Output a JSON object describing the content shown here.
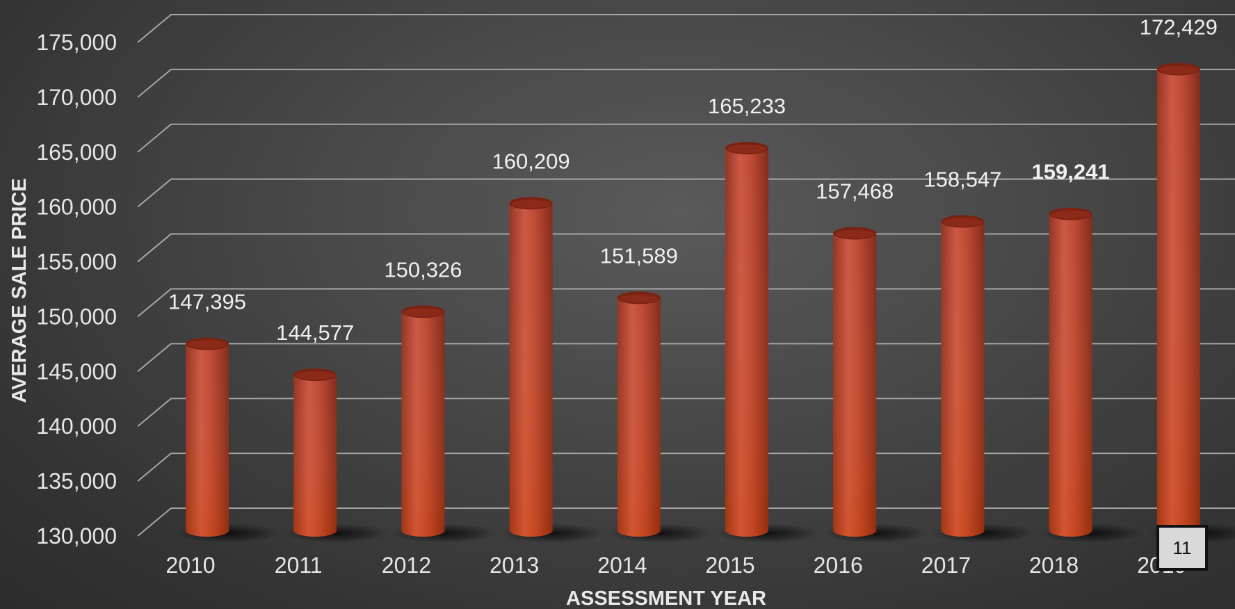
{
  "colors": {
    "bar": "#b83a26",
    "bar_highlight": "#d0553f",
    "bar_shadow": "#7a2212",
    "gridline": "#a6a6a6",
    "text": "#e6e6e6"
  },
  "page_badge": "11",
  "chart_data": {
    "type": "bar",
    "style": "3d-cylinder",
    "categories": [
      "2010",
      "2011",
      "2012",
      "2013",
      "2014",
      "2015",
      "2016",
      "2017",
      "2018",
      "2019"
    ],
    "values": [
      147395,
      144577,
      150326,
      160209,
      151589,
      165233,
      157468,
      158547,
      159241,
      172429
    ],
    "data_labels": [
      "147,395",
      "144,577",
      "150,326",
      "160,209",
      "151,589",
      "165,233",
      "157,468",
      "158,547",
      "159,241",
      "172,429"
    ],
    "bold_label_index": 8,
    "xlabel": "ASSESSMENT YEAR",
    "ylabel": "AVERAGE SALE PRICE",
    "ylim": [
      130000,
      175000
    ],
    "yticks": [
      130000,
      135000,
      140000,
      145000,
      150000,
      155000,
      160000,
      165000,
      170000,
      175000
    ],
    "ytick_labels": [
      "130,000",
      "135,000",
      "140,000",
      "145,000",
      "150,000",
      "155,000",
      "160,000",
      "165,000",
      "170,000",
      "175,000"
    ],
    "grid": true,
    "legend": "none"
  }
}
